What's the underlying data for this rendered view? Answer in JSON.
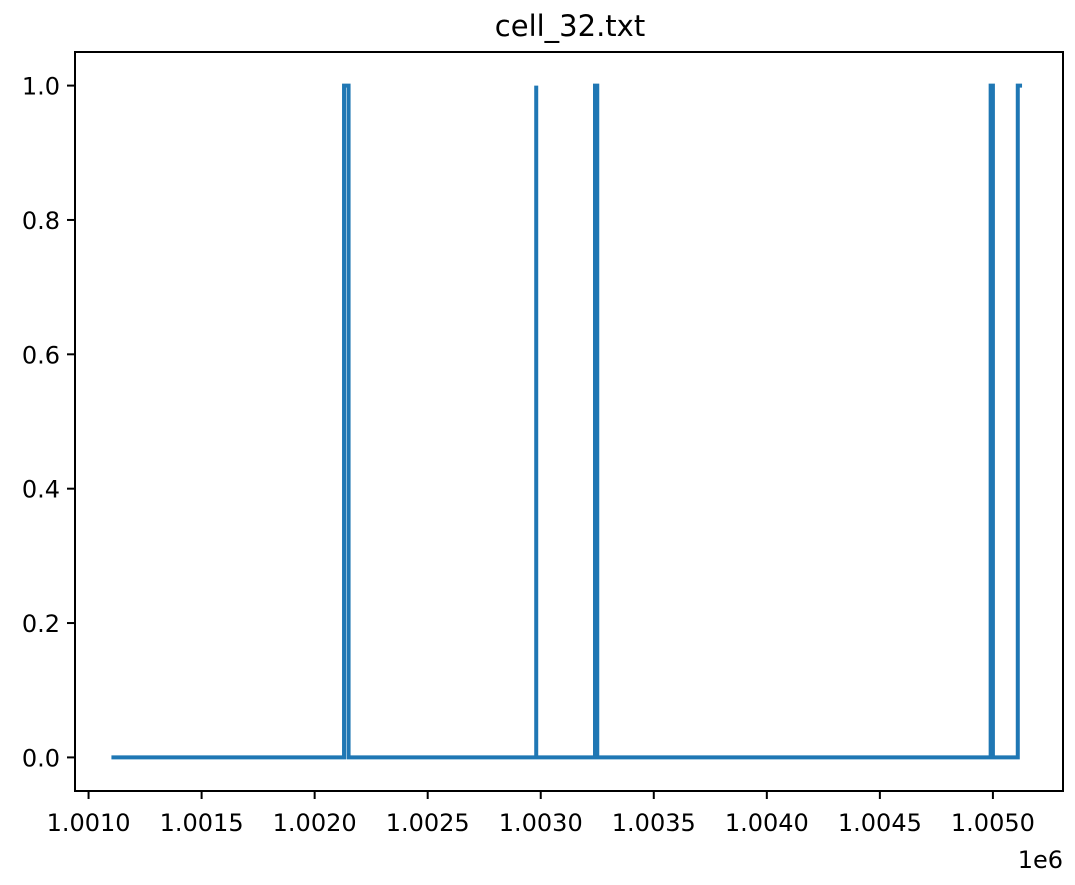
{
  "chart_data": {
    "type": "line",
    "title": "cell_32.txt",
    "xlabel": "",
    "ylabel": "",
    "x_offset_label": "1e6",
    "xlim": [
      1.00094,
      1.00531
    ],
    "ylim": [
      -0.05,
      1.05
    ],
    "x_ticks": [
      1.001,
      1.0015,
      1.002,
      1.0025,
      1.003,
      1.0035,
      1.004,
      1.0045,
      1.005
    ],
    "x_tick_labels": [
      "1.0010",
      "1.0015",
      "1.0020",
      "1.0025",
      "1.0030",
      "1.0035",
      "1.0040",
      "1.0045",
      "1.0050"
    ],
    "y_ticks": [
      0.0,
      0.2,
      0.4,
      0.6,
      0.8,
      1.0
    ],
    "y_tick_labels": [
      "0.0",
      "0.2",
      "0.4",
      "0.6",
      "0.8",
      "1.0"
    ],
    "grid": false,
    "series": [
      {
        "color": "#1f77b4",
        "x": [
          1.00111,
          1.00213,
          1.00213,
          1.00215,
          1.00215,
          1.00298,
          1.00298,
          1.00298,
          1.00298,
          1.00324,
          1.00324,
          1.00325,
          1.00325,
          1.00499,
          1.00499,
          1.005,
          1.005,
          1.00511,
          1.00511,
          1.00512
        ],
        "y": [
          0,
          0,
          1,
          1,
          0,
          0,
          1,
          1,
          0,
          0,
          1,
          1,
          0,
          0,
          1,
          1,
          0,
          0,
          1,
          1
        ]
      }
    ]
  }
}
